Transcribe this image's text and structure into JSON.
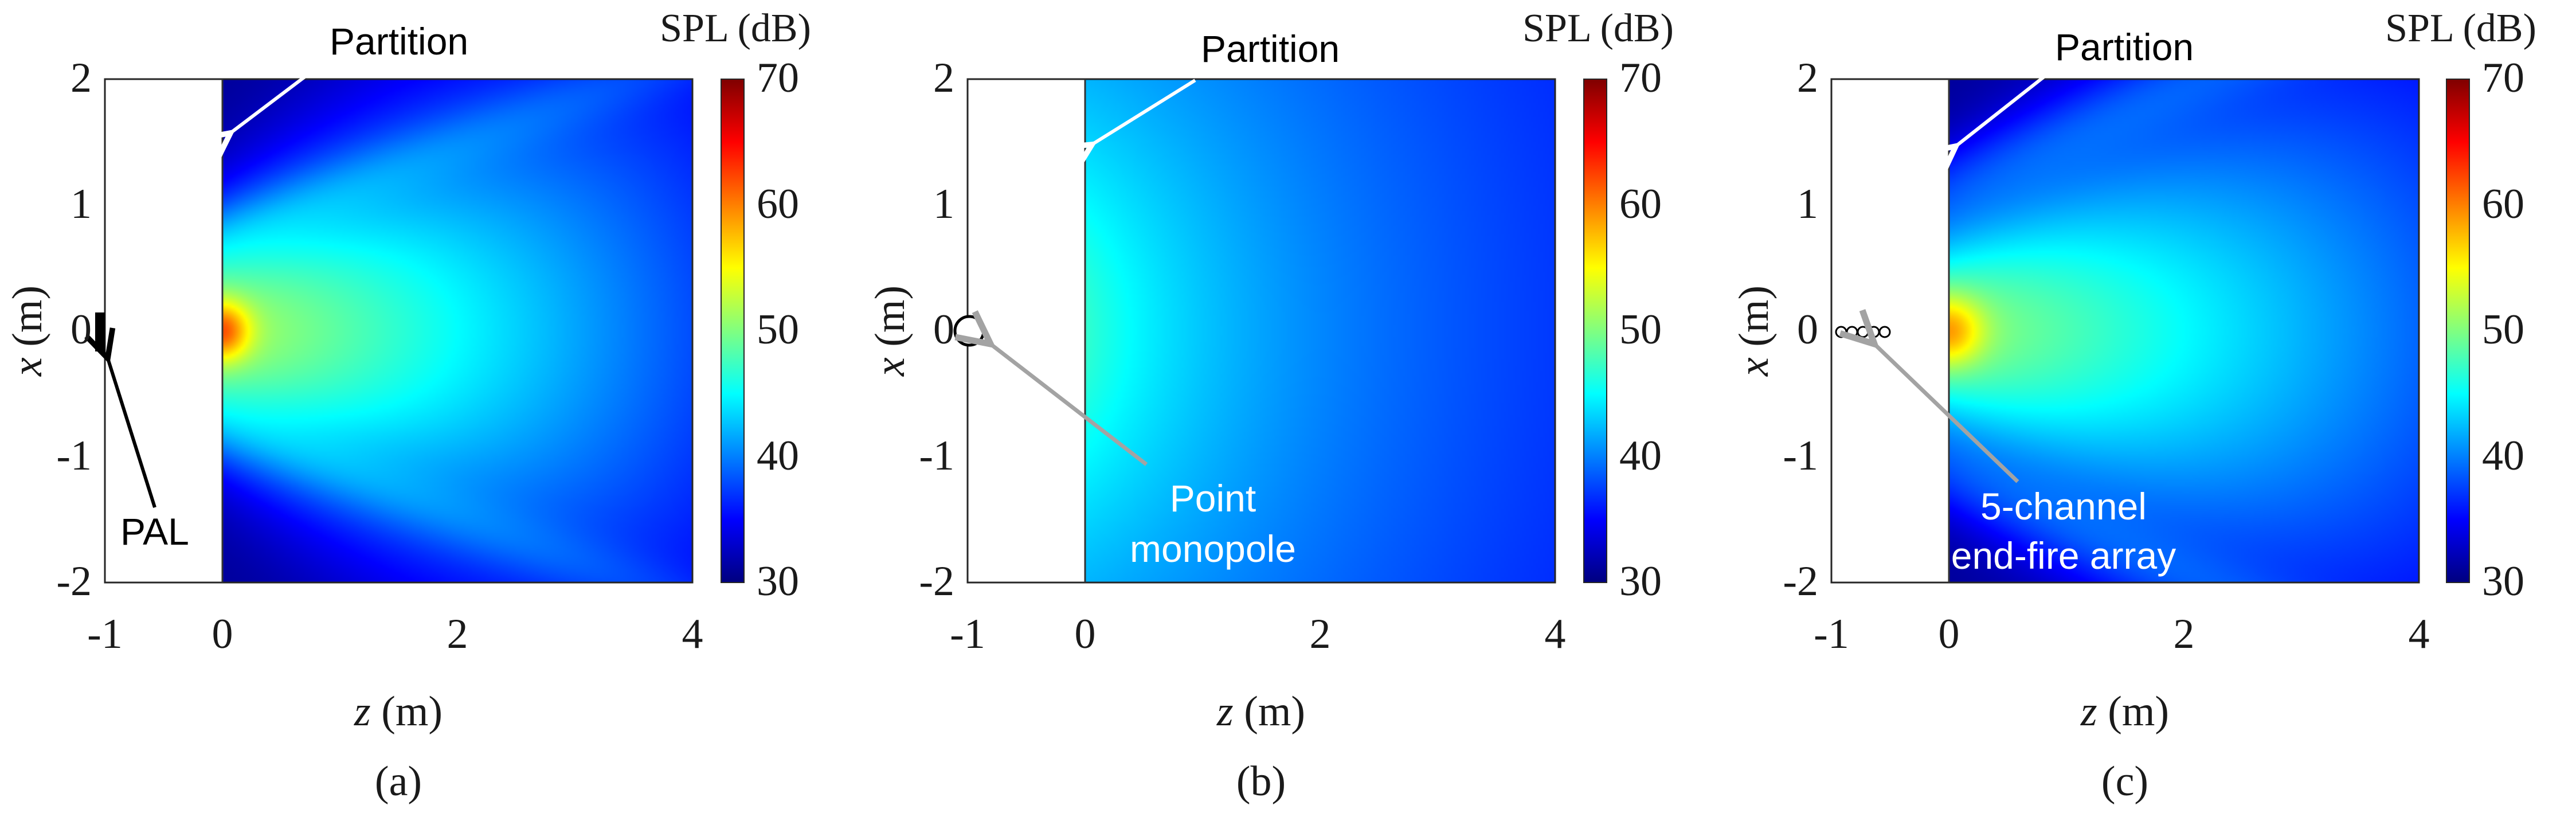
{
  "figure": {
    "colors": {
      "background": "#ffffff",
      "annotation_dark": "#ffffff",
      "annotation_light": "#ffffff",
      "annotation_gray": "#a3a3a3",
      "annotation_black": "#000000",
      "colormap_low": "#00007f",
      "colormap_high": "#7f0000"
    }
  },
  "chart_data": [
    {
      "type": "heatmap",
      "panel_label": "(a)",
      "xlabel_italic": "z",
      "xlabel_unit": " (m)",
      "ylabel_italic": "x",
      "ylabel_unit": " (m)",
      "xlim": [
        -1,
        4
      ],
      "ylim": [
        -2,
        2
      ],
      "x_ticks": [
        "-1",
        "0",
        "2",
        "4"
      ],
      "y_ticks": [
        "2",
        "1",
        "0",
        "-1",
        "-2"
      ],
      "field_region_z": [
        0,
        4
      ],
      "partition_z": 0,
      "source": {
        "type": "PAL",
        "z": -1,
        "x_range": [
          -0.15,
          0.15
        ]
      },
      "field_model": "beam",
      "colorbar": {
        "title": "SPL (dB)",
        "range": [
          30,
          70
        ],
        "ticks": [
          "70",
          "60",
          "50",
          "40",
          "30"
        ]
      },
      "annotations": [
        {
          "text": "Partition",
          "color": "#000000"
        },
        {
          "text": "PAL",
          "color": "#000000"
        }
      ]
    },
    {
      "type": "heatmap",
      "panel_label": "(b)",
      "xlabel_italic": "z",
      "xlabel_unit": " (m)",
      "ylabel_italic": "x",
      "ylabel_unit": " (m)",
      "xlim": [
        -1,
        4
      ],
      "ylim": [
        -2,
        2
      ],
      "x_ticks": [
        "-1",
        "0",
        "2",
        "4"
      ],
      "y_ticks": [
        "2",
        "1",
        "0",
        "-1",
        "-2"
      ],
      "field_region_z": [
        0,
        4
      ],
      "partition_z": 0,
      "source": {
        "type": "point monopole",
        "z": -1,
        "x": 0
      },
      "field_model": "monopole",
      "colorbar": {
        "title": "SPL (dB)",
        "range": [
          30,
          70
        ],
        "ticks": [
          "70",
          "60",
          "50",
          "40",
          "30"
        ]
      },
      "annotations": [
        {
          "text": "Partition",
          "color": "#000000"
        },
        {
          "text": "Point",
          "color": "#ffffff"
        },
        {
          "text": "monopole",
          "color": "#ffffff"
        }
      ]
    },
    {
      "type": "heatmap",
      "panel_label": "(c)",
      "xlabel_italic": "z",
      "xlabel_unit": " (m)",
      "ylabel_italic": "x",
      "ylabel_unit": " (m)",
      "xlim": [
        -1,
        4
      ],
      "ylim": [
        -2,
        2
      ],
      "x_ticks": [
        "-1",
        "0",
        "2",
        "4"
      ],
      "y_ticks": [
        "2",
        "1",
        "0",
        "-1",
        "-2"
      ],
      "field_region_z": [
        0,
        4
      ],
      "partition_z": 0,
      "source": {
        "type": "5-channel end-fire array",
        "z_positions": [
          -0.92,
          -0.83,
          -0.74,
          -0.65,
          -0.56
        ],
        "x": 0
      },
      "field_model": "array",
      "colorbar": {
        "title": "SPL (dB)",
        "range": [
          30,
          70
        ],
        "ticks": [
          "70",
          "60",
          "50",
          "40",
          "30"
        ]
      },
      "annotations": [
        {
          "text": "Partition",
          "color": "#000000"
        },
        {
          "text": "5-channel",
          "color": "#ffffff"
        },
        {
          "text": "end-fire array",
          "color": "#ffffff"
        }
      ]
    }
  ]
}
